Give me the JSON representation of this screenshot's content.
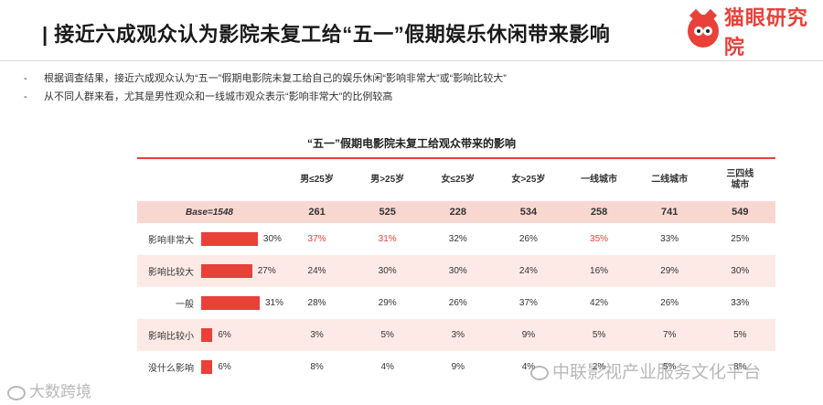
{
  "header": {
    "title": "| 接近六成观众认为影院未复工给“五一”假期娱乐休闲带来影响",
    "brand_name": "猫眼研究院"
  },
  "bullets": [
    {
      "dash": "-",
      "text": "根据调查结果，接近六成观众认为“五一”假期电影院未复工给自己的娱乐休闲“影响非常大”或“影响比较大”"
    },
    {
      "dash": "-",
      "text": "从不同人群来看，尤其是男性观众和一线城市观众表示“影响非常大”的比例较高"
    }
  ],
  "table": {
    "title": "“五一”假期电影院未复工给观众带来的影响",
    "columns": [
      "男≤25岁",
      "男>25岁",
      "女≤25岁",
      "女>25岁",
      "一线城市",
      "二线城市",
      "三四线\n城市"
    ],
    "base": {
      "label": "Base=1548",
      "values": [
        "261",
        "525",
        "228",
        "534",
        "258",
        "741",
        "549"
      ]
    },
    "accent_color": "#e8413a",
    "rows": [
      {
        "label": "影响非常大",
        "overall": 30,
        "overall_text": "30%",
        "values": [
          "37%",
          "31%",
          "32%",
          "26%",
          "35%",
          "33%",
          "25%"
        ],
        "highlight": [
          true,
          true,
          false,
          false,
          true,
          false,
          false
        ],
        "shaded": false
      },
      {
        "label": "影响比较大",
        "overall": 27,
        "overall_text": "27%",
        "values": [
          "24%",
          "30%",
          "30%",
          "24%",
          "16%",
          "29%",
          "30%"
        ],
        "highlight": [
          false,
          false,
          false,
          false,
          false,
          false,
          false
        ],
        "shaded": true
      },
      {
        "label": "一般",
        "overall": 31,
        "overall_text": "31%",
        "values": [
          "28%",
          "29%",
          "26%",
          "37%",
          "42%",
          "26%",
          "33%"
        ],
        "highlight": [
          false,
          false,
          false,
          false,
          false,
          false,
          false
        ],
        "shaded": false
      },
      {
        "label": "影响比较小",
        "overall": 6,
        "overall_text": "6%",
        "values": [
          "3%",
          "5%",
          "3%",
          "9%",
          "5%",
          "7%",
          "5%"
        ],
        "highlight": [
          false,
          false,
          false,
          false,
          false,
          false,
          false
        ],
        "shaded": true
      },
      {
        "label": "没什么影响",
        "overall": 6,
        "overall_text": "6%",
        "values": [
          "8%",
          "4%",
          "9%",
          "4%",
          "2%",
          "5%",
          "8%"
        ],
        "highlight": [
          false,
          false,
          false,
          false,
          false,
          false,
          false
        ],
        "shaded": false
      }
    ]
  },
  "watermarks": {
    "left": "大数跨境",
    "right": "中联影视产业服务文化平台"
  }
}
